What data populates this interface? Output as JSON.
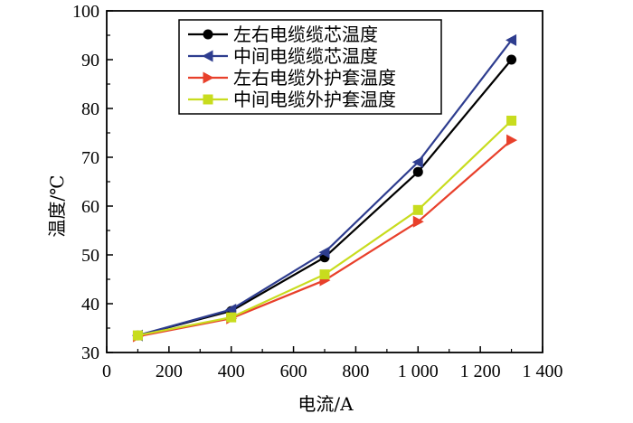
{
  "chart_data": {
    "type": "line",
    "xlabel": "电流/A",
    "ylabel": "温度/℃",
    "xlim": [
      0,
      1400
    ],
    "ylim": [
      30,
      100
    ],
    "xticks": [
      0,
      200,
      400,
      600,
      800,
      1000,
      1200,
      1400
    ],
    "xtick_labels": [
      "0",
      "200",
      "400",
      "600",
      "800",
      "1 000",
      "1 200",
      "1 400"
    ],
    "yticks": [
      30,
      40,
      50,
      60,
      70,
      80,
      90,
      100
    ],
    "ytick_labels": [
      "30",
      "40",
      "50",
      "60",
      "70",
      "80",
      "90",
      "100"
    ],
    "grid": false,
    "legend_position": "top-center",
    "x": [
      100,
      400,
      700,
      1000,
      1300
    ],
    "series": [
      {
        "name": "左右电缆缆芯温度",
        "values": [
          33.5,
          38.5,
          49.5,
          67.0,
          90.0
        ],
        "color": "#000000",
        "marker": "circle"
      },
      {
        "name": "中间电缆缆芯温度",
        "values": [
          33.5,
          38.8,
          50.5,
          69.0,
          94.0
        ],
        "color": "#2e3d8f",
        "marker": "triangle-left"
      },
      {
        "name": "左右电缆外护套温度",
        "values": [
          33.3,
          37.0,
          44.8,
          56.8,
          73.5
        ],
        "color": "#e8402b",
        "marker": "triangle-right"
      },
      {
        "name": "中间电缆外护套温度",
        "values": [
          33.5,
          37.2,
          46.0,
          59.2,
          77.5
        ],
        "color": "#c8dc1e",
        "marker": "square"
      }
    ]
  }
}
